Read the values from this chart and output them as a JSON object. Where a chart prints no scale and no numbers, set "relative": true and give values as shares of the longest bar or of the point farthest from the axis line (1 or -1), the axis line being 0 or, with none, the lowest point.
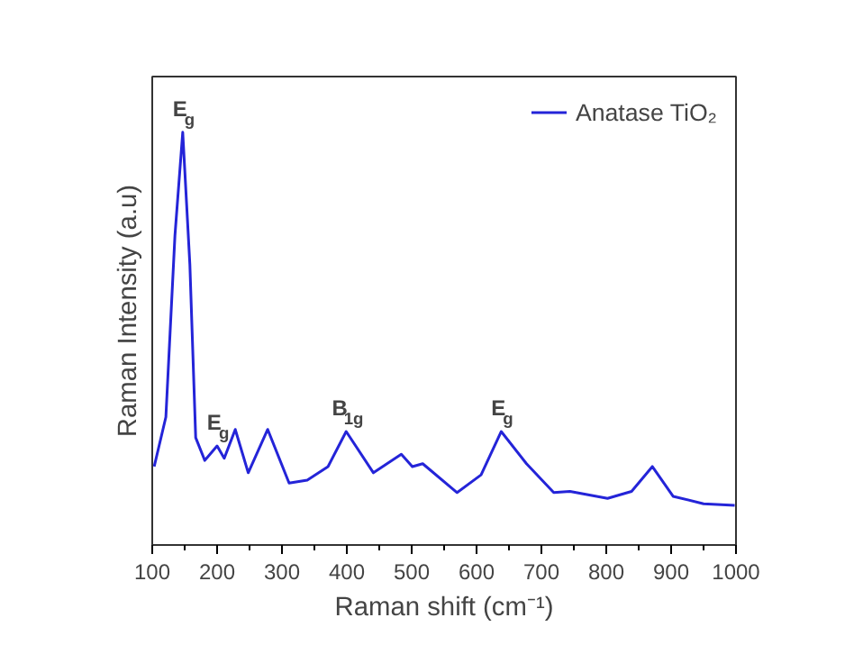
{
  "chart_data": {
    "type": "line",
    "relative": true,
    "xlabel": "Raman shift (cm⁻¹)",
    "ylabel": "Raman Intensity (a.u)",
    "xlim": [
      100,
      1000
    ],
    "xticks": [
      100,
      200,
      300,
      400,
      500,
      600,
      700,
      800,
      900,
      1000
    ],
    "legend": "top right",
    "grid": false,
    "marker": "none",
    "line_style": "solid",
    "series": [
      {
        "name": "Anatase TiO₂",
        "color": "#2424d8",
        "x": [
          103,
          121,
          135,
          147,
          158,
          167,
          181,
          200,
          211,
          228,
          248,
          278,
          311,
          339,
          371,
          399,
          441,
          484,
          501,
          517,
          570,
          607,
          638,
          677,
          719,
          744,
          802,
          839,
          871,
          903,
          950,
          998
        ],
        "values": [
          0.19,
          0.31,
          0.75,
          1.0,
          0.68,
          0.26,
          0.205,
          0.24,
          0.21,
          0.28,
          0.175,
          0.28,
          0.15,
          0.157,
          0.19,
          0.275,
          0.175,
          0.22,
          0.19,
          0.197,
          0.127,
          0.17,
          0.275,
          0.197,
          0.127,
          0.13,
          0.113,
          0.13,
          0.19,
          0.118,
          0.1,
          0.096
        ]
      }
    ],
    "annotations": [
      {
        "text": "E$_{g}$",
        "x": 147,
        "y": 1.0
      },
      {
        "text": "E$_{g}$",
        "x": 200,
        "y": 0.24
      },
      {
        "text": "B$_{1g}$",
        "x": 399,
        "y": 0.275
      },
      {
        "text": "E$_{g}$",
        "x": 638,
        "y": 0.275
      }
    ]
  }
}
